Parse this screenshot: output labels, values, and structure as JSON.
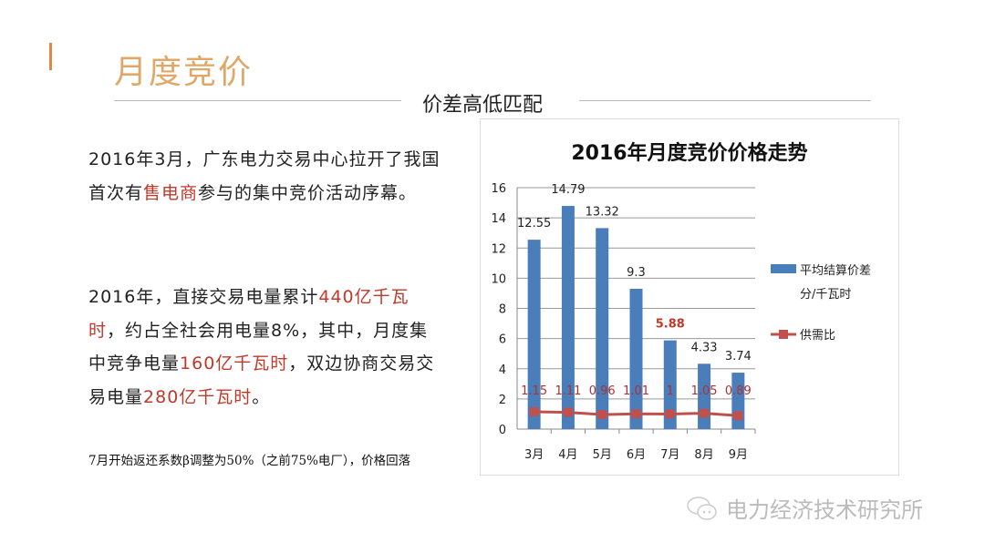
{
  "slide": {
    "title": "月度竞价",
    "subtitle": "价差高低匹配",
    "paragraph1": [
      {
        "text": "2016年3月，广东电力交易中心拉开了我国首次有",
        "hl": false
      },
      {
        "text": "售电商",
        "hl": true
      },
      {
        "text": "参与的集中竞价活动序幕。",
        "hl": false
      }
    ],
    "paragraph2": [
      {
        "text": "2016年，直接交易电量累计",
        "hl": false
      },
      {
        "text": "440亿千瓦时",
        "hl": true
      },
      {
        "text": "，约占全社会用电量8%，其中，月度集中竞争电量",
        "hl": false
      },
      {
        "text": "160亿千瓦时",
        "hl": true
      },
      {
        "text": "，双边协商交易交易电量",
        "hl": false
      },
      {
        "text": "280亿千瓦时",
        "hl": true
      },
      {
        "text": "。",
        "hl": false
      }
    ],
    "note": "7月开始返还系数β调整为50%（之前75%电厂），价格回落",
    "watermark": "电力经济技术研究所",
    "watermark_icon": "wechat-icon",
    "colors": {
      "accent": "#d9894a",
      "title": "#e0a868",
      "highlight": "#c0392b"
    }
  },
  "chart_data": {
    "type": "bar",
    "title": "2016年月度竞价价格走势",
    "categories": [
      "3月",
      "4月",
      "5月",
      "6月",
      "7月",
      "8月",
      "9月"
    ],
    "series": [
      {
        "name": "平均结算价差 分/千瓦时",
        "type": "bar",
        "color": "#4a7ebb",
        "values": [
          12.55,
          14.79,
          13.32,
          9.3,
          5.88,
          4.33,
          3.74
        ],
        "labels": [
          "12.55",
          "14.79",
          "13.32",
          "9.3",
          "5.88",
          "4.33",
          "3.74"
        ],
        "highlighted_label": "5.88"
      },
      {
        "name": "供需比",
        "type": "line",
        "color": "#c0504d",
        "values": [
          1.15,
          1.11,
          0.96,
          1.01,
          1,
          1.05,
          0.89
        ],
        "labels": [
          "1.15",
          "1.11",
          "0.96",
          "1.01",
          "1",
          "1.05",
          "0.89"
        ]
      }
    ],
    "legend": {
      "bar_line1": "平均结算价差",
      "bar_line2": "分/千瓦时",
      "line": "供需比"
    },
    "ylim": [
      0,
      16
    ],
    "yticks": [
      "0",
      "2",
      "4",
      "6",
      "8",
      "10",
      "12",
      "14",
      "16"
    ],
    "grid": true,
    "legend_position": "right"
  }
}
